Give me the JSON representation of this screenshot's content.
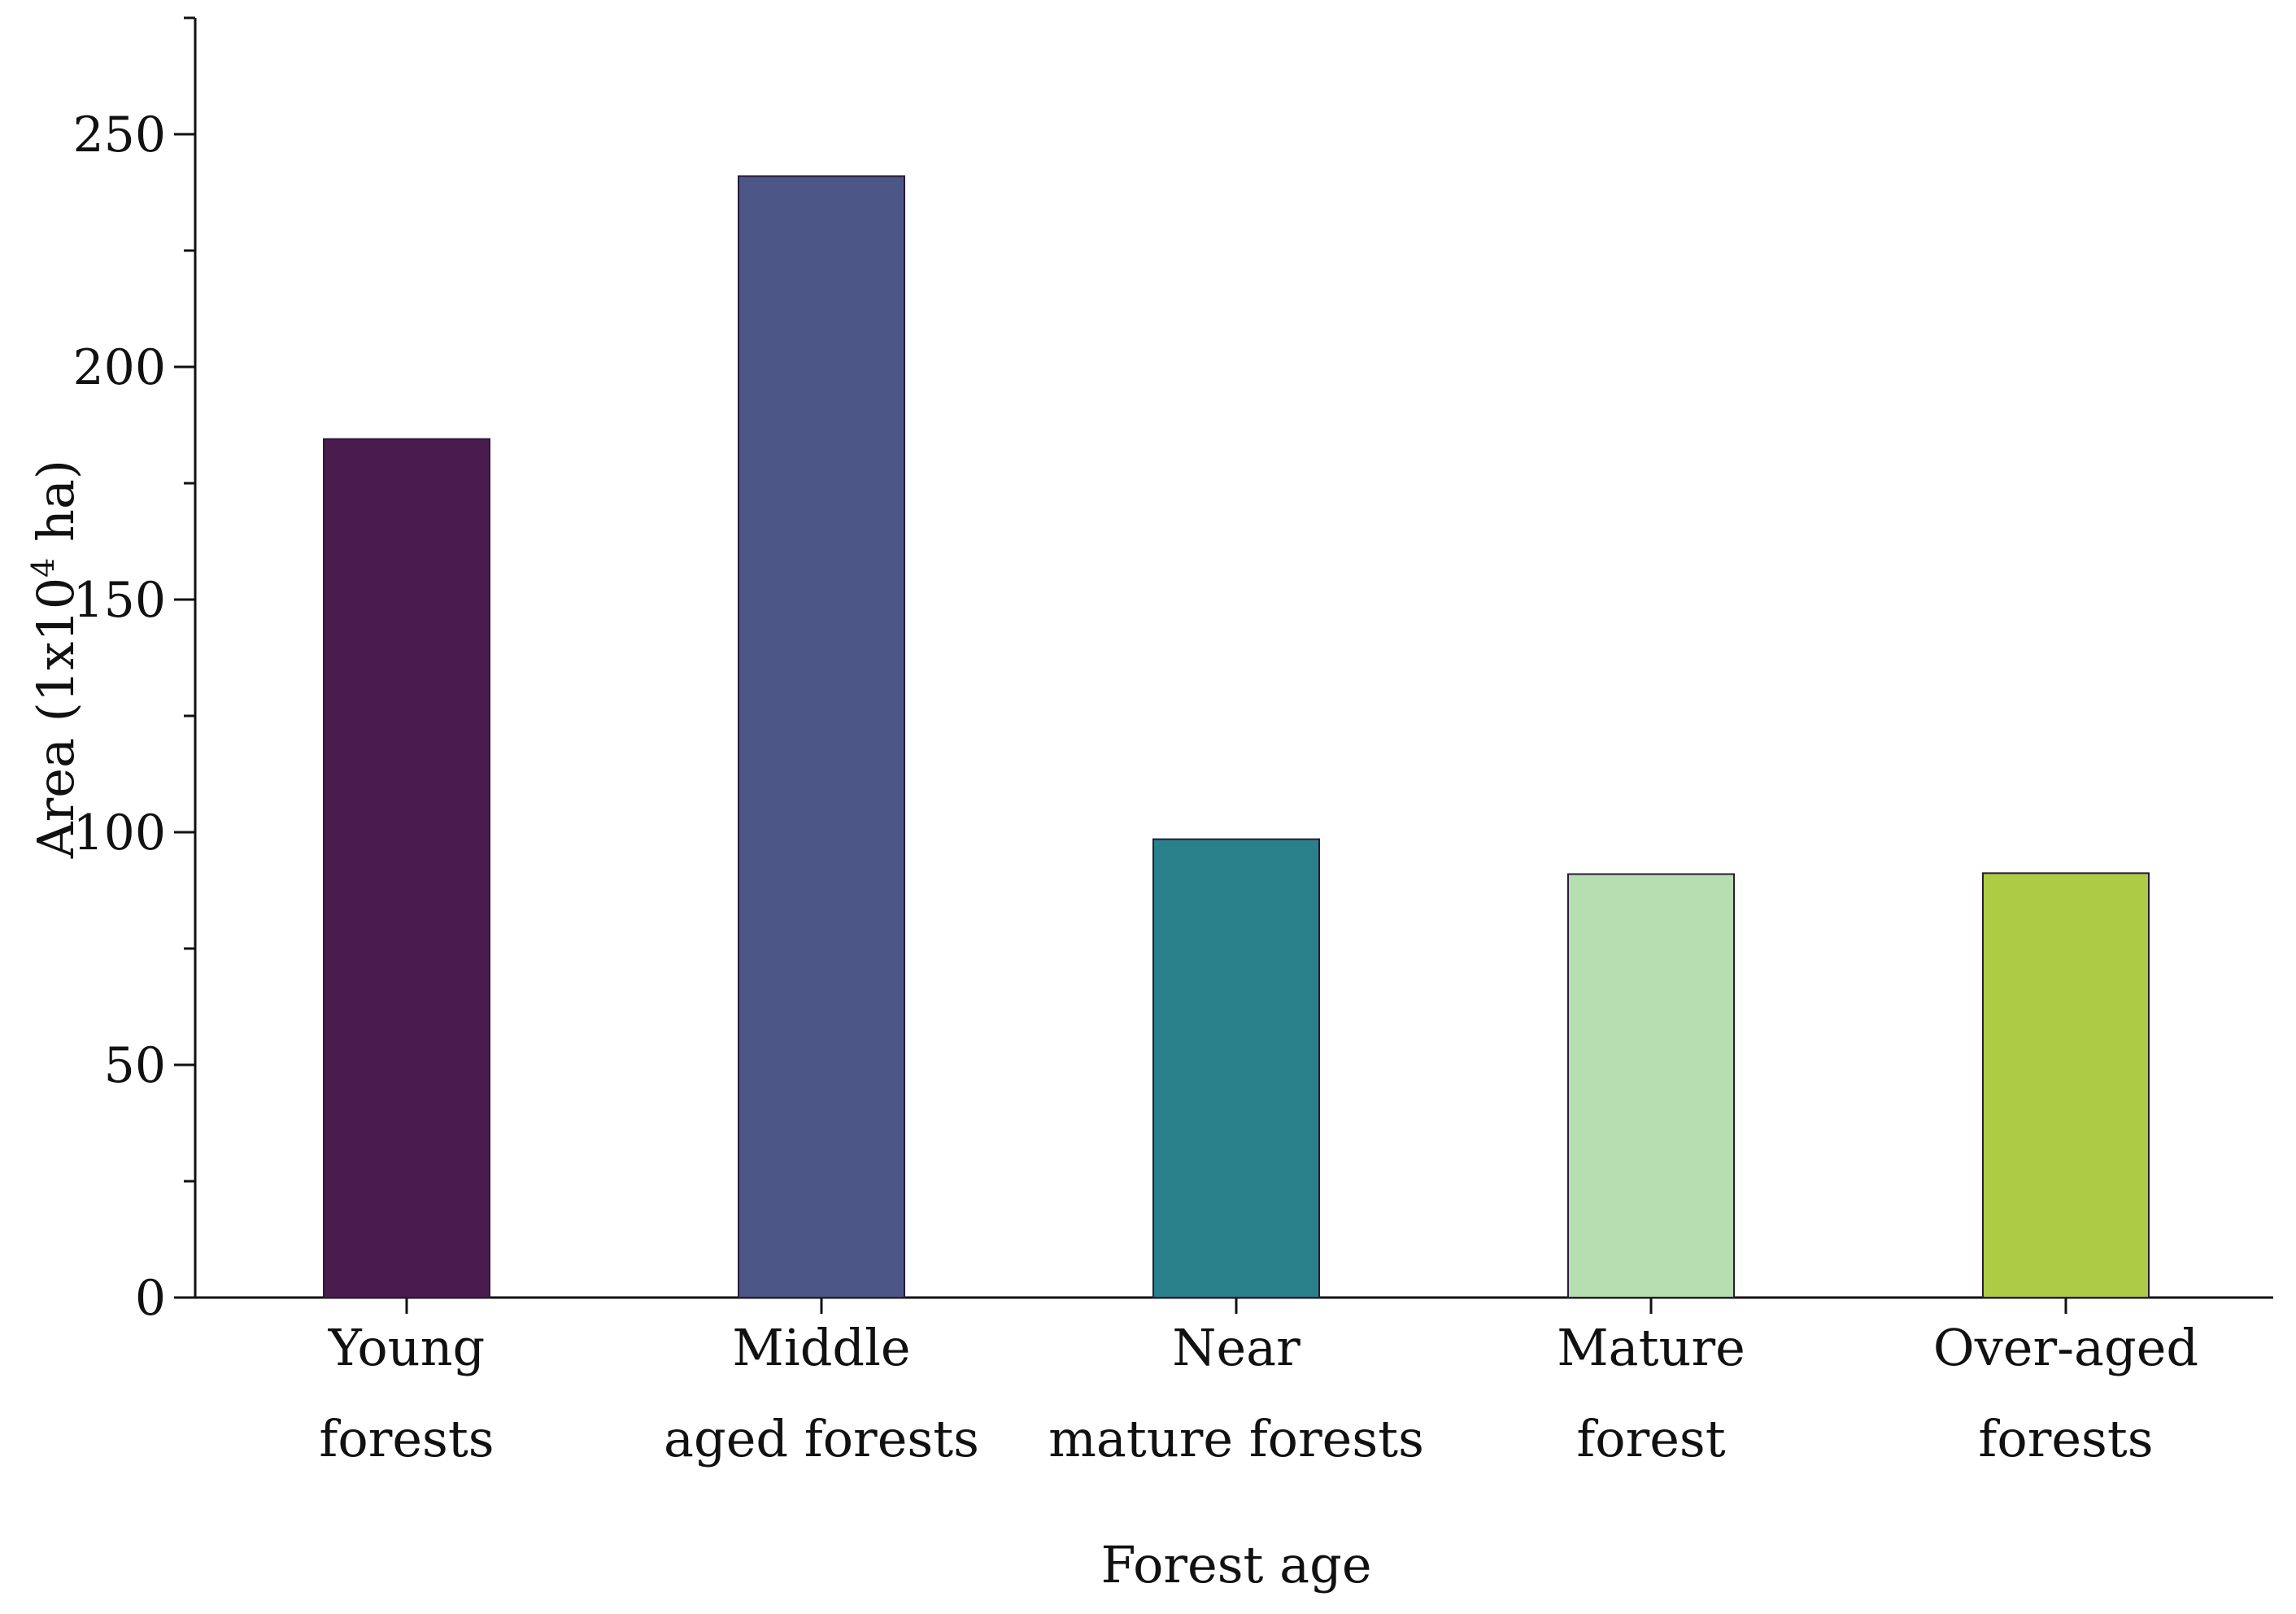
{
  "chart_data": {
    "type": "bar",
    "title": "",
    "xlabel": "Forest age",
    "ylabel": {
      "prefix": "Area (1x10",
      "superscript": "4",
      "suffix": " ha)"
    },
    "categories": [
      [
        "Young",
        "forests"
      ],
      [
        "Middle",
        "aged forests"
      ],
      [
        "Near",
        "mature forests"
      ],
      [
        "Mature",
        "forest"
      ],
      [
        "Over-aged",
        "forests"
      ]
    ],
    "values": [
      184.5,
      241,
      98.5,
      91,
      91.2
    ],
    "colors": [
      "#4a1b4d",
      "#4c5788",
      "#2b818b",
      "#b7deb0",
      "#aecb45"
    ],
    "ylim": [
      0,
      275
    ],
    "yticks": [
      0,
      50,
      100,
      150,
      200,
      250
    ],
    "yminor_step": 25,
    "grid": false,
    "legend": "none"
  }
}
